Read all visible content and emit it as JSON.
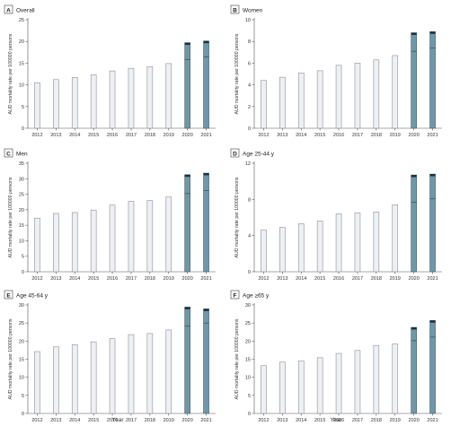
{
  "figure": {
    "xlabel_bottom_left": "Year",
    "xlabel_bottom_right": "Year"
  },
  "colors": {
    "bar_fill": "#eef0f3",
    "bar_edge": "#8a8f96",
    "pandemic_fill": "#6f97a8",
    "pandemic_edge": "#3f5f6e",
    "pandemic_cap": "#1f2f37",
    "axis": "#555555",
    "tag_box": "#ffffff"
  },
  "chart_data": [
    {
      "type": "bar",
      "panel": "A",
      "title": "Overall",
      "ylabel": "AUD mortality rate per 100000 persons",
      "ylim": [
        0,
        25
      ],
      "yticks": [
        0,
        5,
        10,
        15,
        20,
        25
      ],
      "categories": [
        "2012",
        "2013",
        "2014",
        "2015",
        "2016",
        "2017",
        "2018",
        "2019",
        "2020",
        "2021"
      ],
      "observed": [
        10.5,
        11.2,
        11.7,
        12.3,
        13.2,
        13.8,
        14.2,
        14.9,
        19.7,
        20.1
      ],
      "predicted": [
        null,
        null,
        null,
        null,
        null,
        null,
        null,
        null,
        15.8,
        16.4
      ]
    },
    {
      "type": "bar",
      "panel": "B",
      "title": "Women",
      "ylabel": "AUD mortality rate per 100000 persons",
      "ylim": [
        0,
        10
      ],
      "yticks": [
        0,
        2,
        4,
        6,
        8,
        10
      ],
      "categories": [
        "2012",
        "2013",
        "2014",
        "2015",
        "2016",
        "2017",
        "2018",
        "2019",
        "2020",
        "2021"
      ],
      "observed": [
        4.4,
        4.7,
        5.1,
        5.3,
        5.8,
        6.0,
        6.3,
        6.7,
        8.8,
        8.9
      ],
      "predicted": [
        null,
        null,
        null,
        null,
        null,
        null,
        null,
        null,
        7.1,
        7.4
      ]
    },
    {
      "type": "bar",
      "panel": "C",
      "title": "Men",
      "ylabel": "AUD mortality rate per 100000 persons",
      "ylim": [
        0,
        35
      ],
      "yticks": [
        0,
        5,
        10,
        15,
        20,
        25,
        30,
        35
      ],
      "categories": [
        "2012",
        "2013",
        "2014",
        "2015",
        "2016",
        "2017",
        "2018",
        "2019",
        "2020",
        "2021"
      ],
      "observed": [
        17.3,
        18.8,
        19.1,
        19.9,
        21.5,
        22.7,
        23.0,
        24.1,
        31.3,
        31.8
      ],
      "predicted": [
        null,
        null,
        null,
        null,
        null,
        null,
        null,
        null,
        25.2,
        26.2
      ]
    },
    {
      "type": "bar",
      "panel": "D",
      "title": "Age 25-44 y",
      "ylabel": "AUD mortality rate per 100000 persons",
      "ylim": [
        0,
        12
      ],
      "yticks": [
        0,
        4,
        8,
        12
      ],
      "categories": [
        "2012",
        "2013",
        "2014",
        "2015",
        "2016",
        "2017",
        "2018",
        "2019",
        "2020",
        "2021"
      ],
      "observed": [
        4.6,
        4.9,
        5.3,
        5.6,
        6.4,
        6.5,
        6.6,
        7.4,
        10.7,
        10.8
      ],
      "predicted": [
        null,
        null,
        null,
        null,
        null,
        null,
        null,
        null,
        7.7,
        8.1
      ]
    },
    {
      "type": "bar",
      "panel": "E",
      "title": "Age 45-64 y",
      "ylabel": "AUD mortality rate per 100000 persons",
      "ylim": [
        0,
        30
      ],
      "yticks": [
        0,
        5,
        10,
        15,
        20,
        25,
        30
      ],
      "categories": [
        "2012",
        "2013",
        "2014",
        "2015",
        "2016",
        "2017",
        "2018",
        "2019",
        "2020",
        "2021"
      ],
      "observed": [
        17.1,
        18.4,
        19.0,
        19.8,
        20.7,
        21.8,
        22.1,
        23.1,
        29.4,
        28.9
      ],
      "predicted": [
        null,
        null,
        null,
        null,
        null,
        null,
        null,
        null,
        24.1,
        25.0
      ]
    },
    {
      "type": "bar",
      "panel": "F",
      "title": "Age ≥65 y",
      "ylabel": "AUD mortality rate per 100000 persons",
      "ylim": [
        0,
        30
      ],
      "yticks": [
        0,
        5,
        10,
        15,
        20,
        25,
        30
      ],
      "categories": [
        "2012",
        "2013",
        "2014",
        "2015",
        "2016",
        "2017",
        "2018",
        "2019",
        "2020",
        "2021"
      ],
      "observed": [
        13.2,
        14.2,
        14.5,
        15.4,
        16.6,
        17.4,
        18.8,
        19.2,
        23.8,
        25.7
      ],
      "predicted": [
        null,
        null,
        null,
        null,
        null,
        null,
        null,
        null,
        20.1,
        21.1
      ]
    }
  ]
}
